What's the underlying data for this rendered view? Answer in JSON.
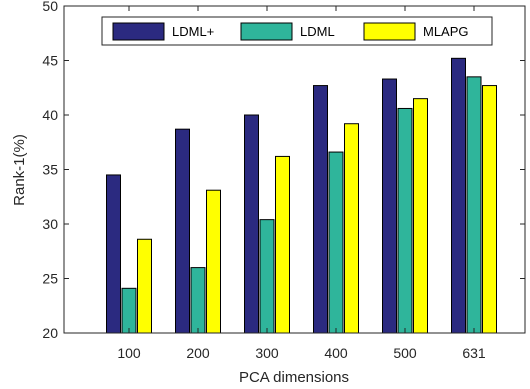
{
  "chart_data": {
    "type": "bar",
    "title": "",
    "xlabel": "PCA dimensions",
    "ylabel": "Rank-1(%)",
    "categories": [
      "100",
      "200",
      "300",
      "400",
      "500",
      "631"
    ],
    "ylim": [
      20,
      50
    ],
    "yticks": [
      "20",
      "25",
      "30",
      "35",
      "40",
      "45",
      "50"
    ],
    "grid": false,
    "legend_position": "top",
    "series": [
      {
        "name": "LDML+",
        "color": "#2b2a80",
        "values": [
          34.5,
          38.7,
          40.0,
          42.7,
          43.3,
          45.2
        ]
      },
      {
        "name": "LDML",
        "color": "#2fb59b",
        "values": [
          24.1,
          26.0,
          30.4,
          36.6,
          40.6,
          43.5
        ]
      },
      {
        "name": "MLAPG",
        "color": "#ffff00",
        "values": [
          28.6,
          33.1,
          36.2,
          39.2,
          41.5,
          42.7
        ]
      }
    ]
  }
}
